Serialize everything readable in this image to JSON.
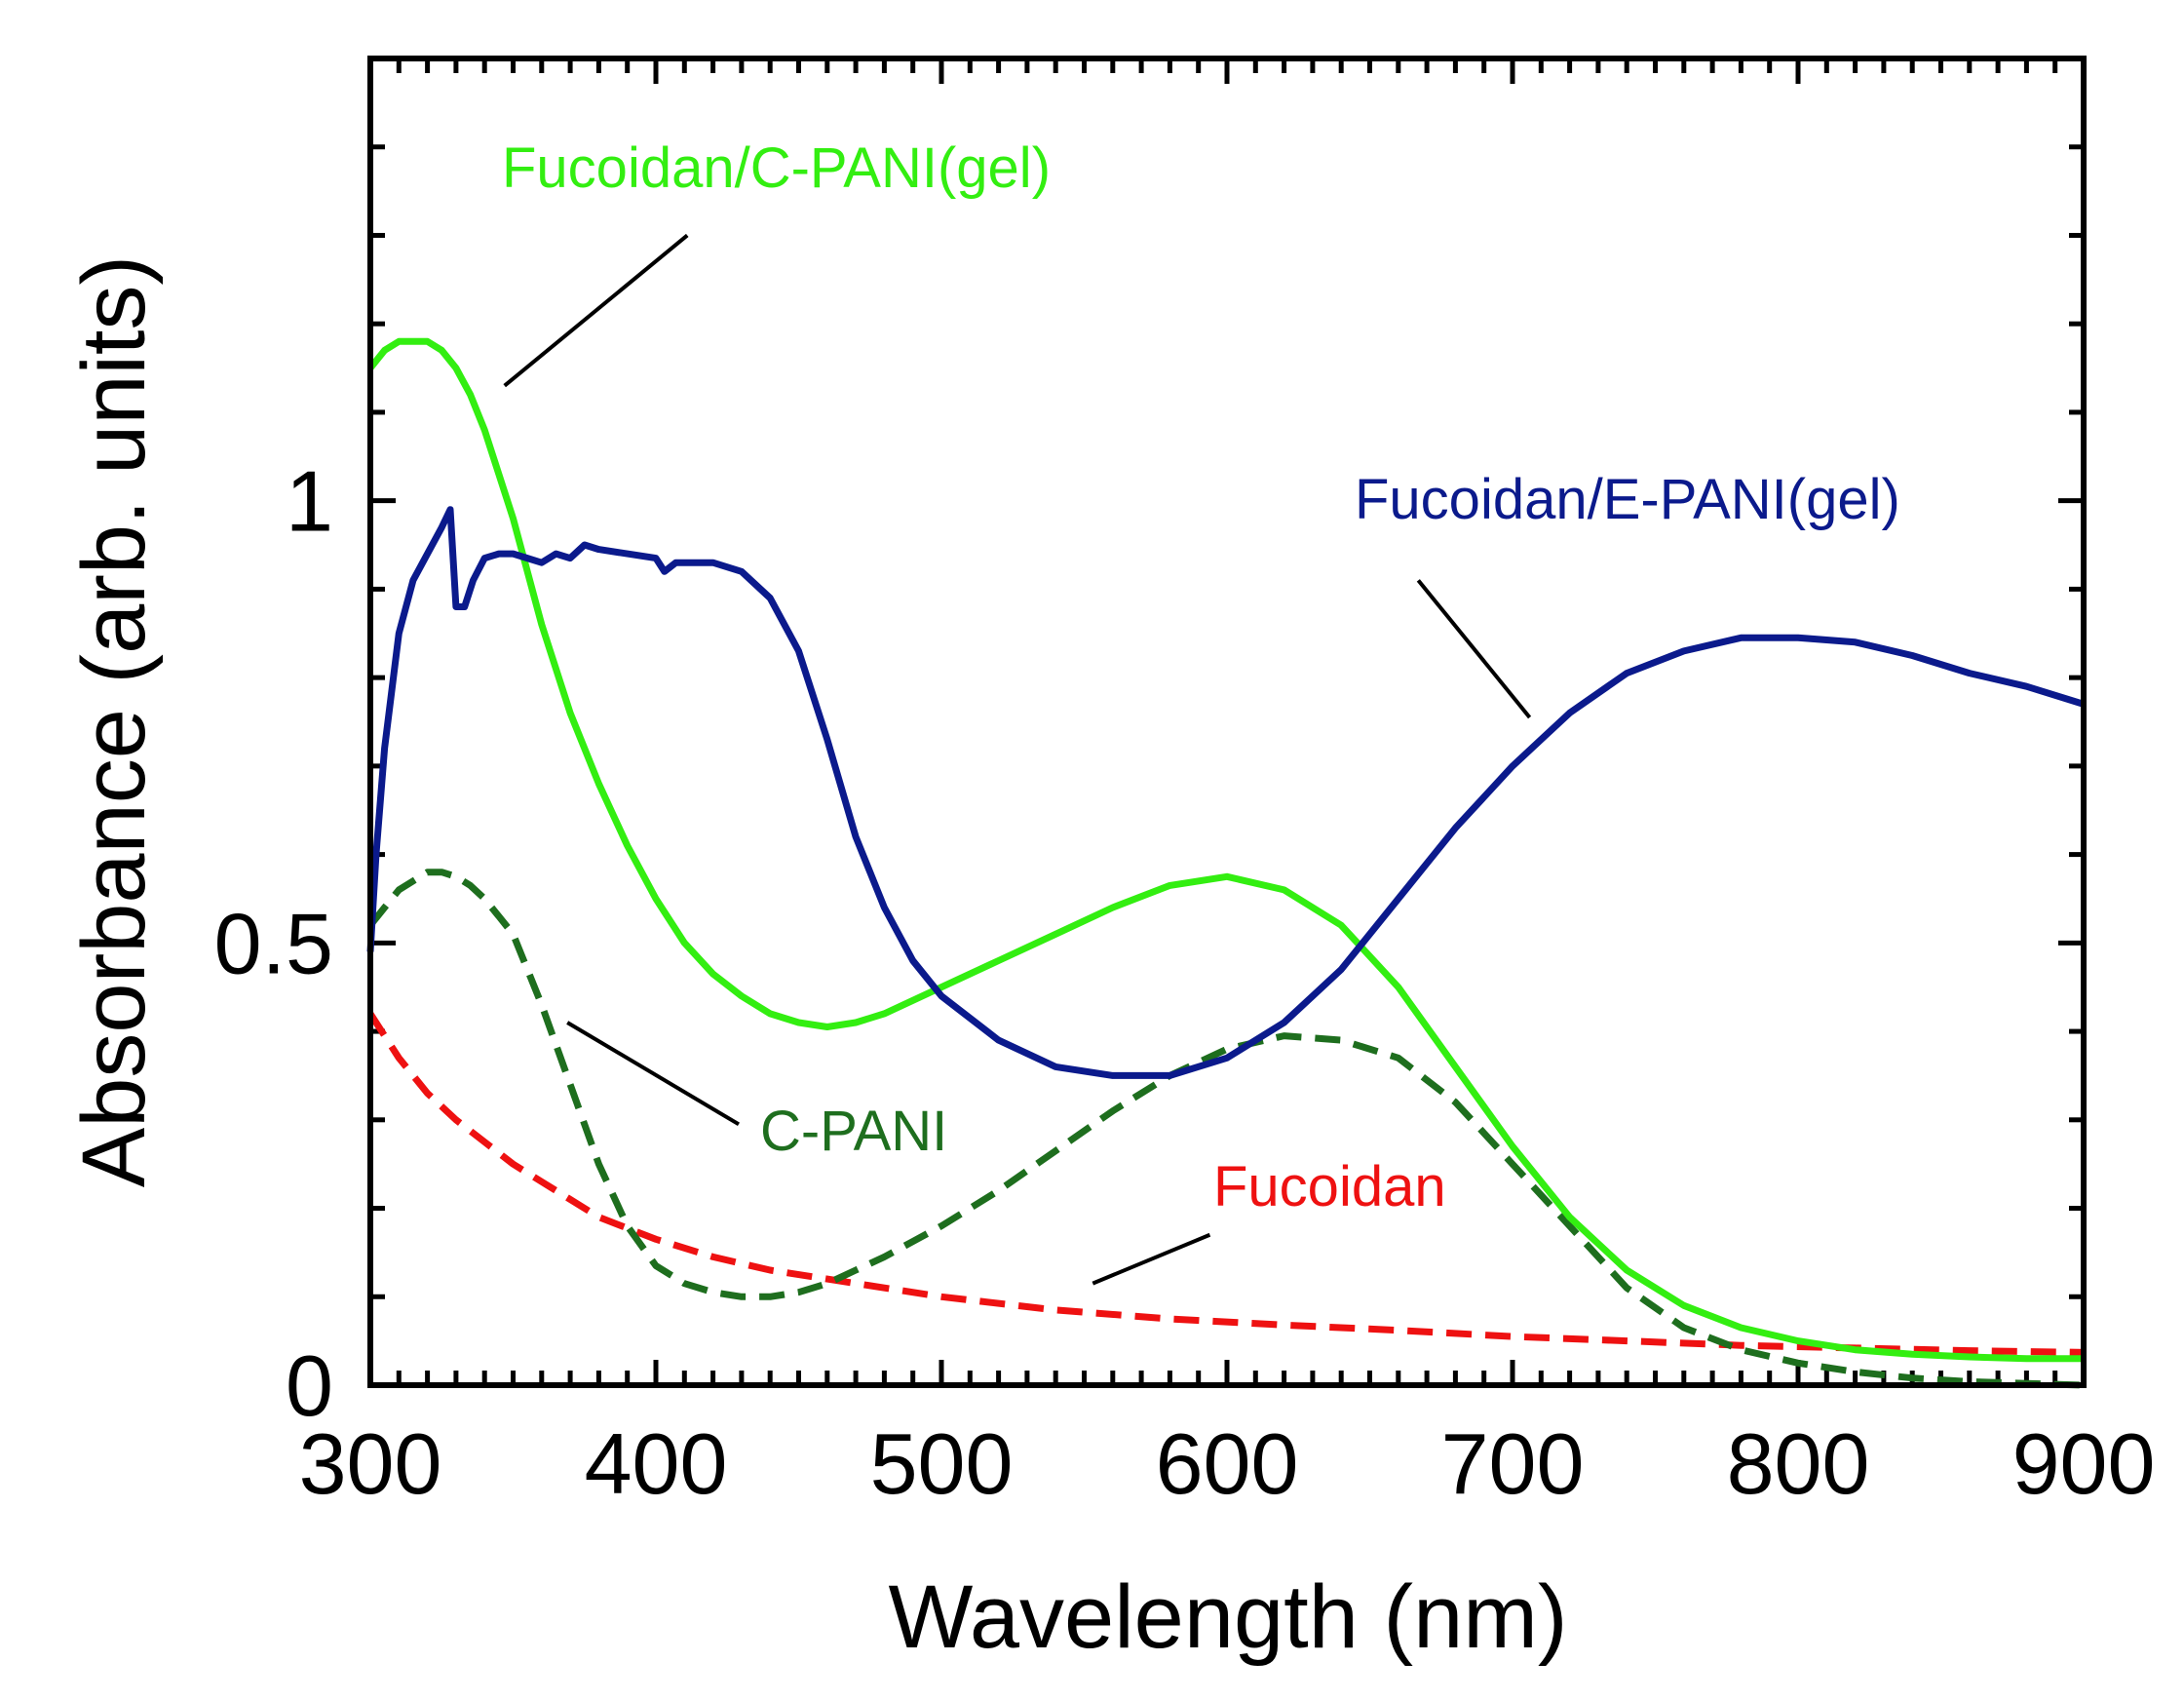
{
  "chart_data": {
    "type": "line",
    "title": "",
    "xlabel": "Wavelength (nm)",
    "ylabel": "Absorbance (arb. units)",
    "xlim": [
      300,
      900
    ],
    "ylim": [
      0,
      1.5
    ],
    "xticks": [
      300,
      400,
      500,
      600,
      700,
      800,
      900
    ],
    "xtick_labels": [
      "300",
      "400",
      "500",
      "600",
      "700",
      "800",
      "900"
    ],
    "yticks": [
      0,
      0.5,
      1
    ],
    "ytick_labels": [
      "0",
      "0.5",
      "1"
    ],
    "grid": false,
    "series": [
      {
        "name": "Fucoidan/C-PANI(gel)",
        "color": "#33ee11",
        "style": "solid",
        "x": [
          300,
          305,
          310,
          315,
          320,
          325,
          330,
          335,
          340,
          350,
          360,
          370,
          380,
          390,
          400,
          410,
          420,
          430,
          440,
          450,
          460,
          470,
          480,
          490,
          500,
          520,
          540,
          560,
          580,
          600,
          620,
          640,
          660,
          680,
          700,
          720,
          740,
          760,
          780,
          800,
          820,
          840,
          860,
          880,
          900
        ],
        "y": [
          1.15,
          1.17,
          1.18,
          1.18,
          1.18,
          1.17,
          1.15,
          1.12,
          1.08,
          0.98,
          0.86,
          0.76,
          0.68,
          0.61,
          0.55,
          0.5,
          0.465,
          0.44,
          0.42,
          0.41,
          0.405,
          0.41,
          0.42,
          0.435,
          0.45,
          0.48,
          0.51,
          0.54,
          0.565,
          0.575,
          0.56,
          0.52,
          0.45,
          0.36,
          0.27,
          0.19,
          0.13,
          0.09,
          0.065,
          0.05,
          0.04,
          0.035,
          0.032,
          0.03,
          0.03
        ]
      },
      {
        "name": "Fucoidan/E-PANI(gel)",
        "color": "#0b1a8c",
        "style": "solid",
        "x": [
          300,
          302,
          305,
          310,
          315,
          320,
          325,
          328,
          330,
          333,
          336,
          340,
          345,
          350,
          355,
          360,
          365,
          370,
          375,
          380,
          390,
          400,
          403,
          407,
          410,
          420,
          430,
          440,
          450,
          460,
          470,
          480,
          490,
          500,
          520,
          540,
          560,
          580,
          600,
          620,
          640,
          660,
          680,
          700,
          720,
          740,
          760,
          780,
          800,
          820,
          840,
          860,
          880,
          900
        ],
        "y": [
          0.49,
          0.6,
          0.72,
          0.85,
          0.91,
          0.94,
          0.97,
          0.99,
          0.88,
          0.88,
          0.91,
          0.935,
          0.94,
          0.94,
          0.935,
          0.93,
          0.94,
          0.935,
          0.95,
          0.945,
          0.94,
          0.935,
          0.92,
          0.93,
          0.93,
          0.93,
          0.92,
          0.89,
          0.83,
          0.73,
          0.62,
          0.54,
          0.48,
          0.44,
          0.39,
          0.36,
          0.35,
          0.35,
          0.37,
          0.41,
          0.47,
          0.55,
          0.63,
          0.7,
          0.76,
          0.805,
          0.83,
          0.845,
          0.845,
          0.84,
          0.825,
          0.805,
          0.79,
          0.77
        ]
      },
      {
        "name": "C-PANI",
        "color": "#1e6e1e",
        "style": "dashed",
        "x": [
          300,
          305,
          310,
          315,
          320,
          325,
          330,
          335,
          340,
          345,
          350,
          360,
          370,
          380,
          390,
          400,
          410,
          420,
          430,
          440,
          450,
          460,
          470,
          480,
          500,
          520,
          540,
          560,
          580,
          600,
          620,
          640,
          660,
          680,
          700,
          720,
          740,
          760,
          780,
          800,
          820,
          840,
          860,
          880,
          900
        ],
        "y": [
          0.52,
          0.54,
          0.56,
          0.57,
          0.58,
          0.58,
          0.575,
          0.565,
          0.55,
          0.53,
          0.51,
          0.43,
          0.34,
          0.25,
          0.18,
          0.135,
          0.115,
          0.105,
          0.1,
          0.1,
          0.105,
          0.115,
          0.13,
          0.145,
          0.18,
          0.22,
          0.265,
          0.31,
          0.35,
          0.38,
          0.395,
          0.39,
          0.37,
          0.32,
          0.25,
          0.18,
          0.11,
          0.065,
          0.04,
          0.025,
          0.015,
          0.008,
          0.004,
          0.002,
          0.0
        ]
      },
      {
        "name": "Fucoidan",
        "color": "#ee1111",
        "style": "dashed",
        "x": [
          300,
          310,
          320,
          330,
          340,
          350,
          360,
          380,
          400,
          420,
          440,
          460,
          480,
          500,
          540,
          580,
          620,
          660,
          700,
          740,
          780,
          820,
          860,
          900
        ],
        "y": [
          0.42,
          0.37,
          0.33,
          0.3,
          0.275,
          0.25,
          0.23,
          0.19,
          0.165,
          0.145,
          0.13,
          0.12,
          0.11,
          0.1,
          0.085,
          0.075,
          0.068,
          0.062,
          0.055,
          0.05,
          0.045,
          0.042,
          0.039,
          0.037
        ]
      }
    ],
    "annotations": [
      {
        "text": "Fucoidan/C-PANI(gel)",
        "color": "#33ee11",
        "series": "Fucoidan/C-PANI(gel)"
      },
      {
        "text": "Fucoidan/E-PANI(gel)",
        "color": "#0b1a8c",
        "series": "Fucoidan/E-PANI(gel)"
      },
      {
        "text": "C-PANI",
        "color": "#1e6e1e",
        "series": "C-PANI"
      },
      {
        "text": "Fucoidan",
        "color": "#ee1111",
        "series": "Fucoidan"
      }
    ]
  }
}
